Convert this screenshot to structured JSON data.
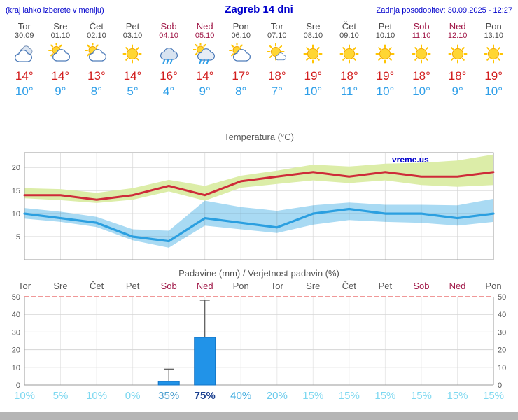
{
  "header": {
    "left_note": "(kraj lahko izberete v meniju)",
    "title": "Zagreb 14 dni",
    "updated": "Zadnja posodobitev: 30.09.2025 - 12:27"
  },
  "colors": {
    "accent_blue": "#0000CC",
    "weekend_red": "#A01747",
    "high_temp_red": "#D21E1E",
    "low_temp_blue": "#2F9FE8",
    "max_line_red": "#CE2B39",
    "min_line_blue": "#2B9FE0",
    "bar_blue": "#2193E8",
    "footer_gray": "#B5B5B5"
  },
  "forecast": {
    "days": [
      {
        "weekday": "Tor",
        "date": "30.09",
        "weekend": false,
        "icon": "cloudy",
        "high": "14°",
        "low": "10°"
      },
      {
        "weekday": "Sre",
        "date": "01.10",
        "weekend": false,
        "icon": "partly",
        "high": "14°",
        "low": "9°"
      },
      {
        "weekday": "Čet",
        "date": "02.10",
        "weekend": false,
        "icon": "partly",
        "high": "13°",
        "low": "8°"
      },
      {
        "weekday": "Pet",
        "date": "03.10",
        "weekend": false,
        "icon": "sunny",
        "high": "14°",
        "low": "5°"
      },
      {
        "weekday": "Sob",
        "date": "04.10",
        "weekend": true,
        "icon": "rain",
        "high": "16°",
        "low": "4°"
      },
      {
        "weekday": "Ned",
        "date": "05.10",
        "weekend": true,
        "icon": "rainsun",
        "high": "14°",
        "low": "9°"
      },
      {
        "weekday": "Pon",
        "date": "06.10",
        "weekend": false,
        "icon": "partly",
        "high": "17°",
        "low": "8°"
      },
      {
        "weekday": "Tor",
        "date": "07.10",
        "weekend": false,
        "icon": "mostlysunny",
        "high": "18°",
        "low": "7°"
      },
      {
        "weekday": "Sre",
        "date": "08.10",
        "weekend": false,
        "icon": "sunny",
        "high": "19°",
        "low": "10°"
      },
      {
        "weekday": "Čet",
        "date": "09.10",
        "weekend": false,
        "icon": "sunny",
        "high": "18°",
        "low": "11°"
      },
      {
        "weekday": "Pet",
        "date": "10.10",
        "weekend": false,
        "icon": "sunny",
        "high": "19°",
        "low": "10°"
      },
      {
        "weekday": "Sob",
        "date": "11.10",
        "weekend": true,
        "icon": "sunny",
        "high": "18°",
        "low": "10°"
      },
      {
        "weekday": "Ned",
        "date": "12.10",
        "weekend": true,
        "icon": "sunny",
        "high": "18°",
        "low": "9°"
      },
      {
        "weekday": "Pon",
        "date": "13.10",
        "weekend": false,
        "icon": "sunny",
        "high": "19°",
        "low": "10°"
      }
    ]
  },
  "chart_data": [
    {
      "type": "line",
      "title": "Temperatura (°C)",
      "watermark": "vreme.us",
      "x_labels": [
        "Tor",
        "Sre",
        "Čet",
        "Pet",
        "Sob",
        "Ned",
        "Pon",
        "Tor",
        "Sre",
        "Čet",
        "Pet",
        "Sob",
        "Ned",
        "Pon"
      ],
      "ylim": [
        0,
        23.2
      ],
      "yticks": [
        5,
        10,
        15,
        20
      ],
      "series": [
        {
          "name": "max-temp",
          "color": "#CE2B39",
          "width": 3,
          "values": [
            14,
            14,
            13,
            14,
            16,
            14,
            17,
            18,
            19,
            18,
            19,
            18,
            18,
            19
          ]
        },
        {
          "name": "min-temp",
          "color": "#2B9FE0",
          "width": 3.2,
          "values": [
            10,
            9,
            8,
            5,
            4,
            9,
            8,
            7,
            10,
            11,
            10,
            10,
            9,
            10
          ]
        }
      ],
      "bands": [
        {
          "name": "max-range",
          "color": "#DCEDA8",
          "upper": [
            15.5,
            15.3,
            14.5,
            15.5,
            17.3,
            16.0,
            18.2,
            19.3,
            20.6,
            20.2,
            20.8,
            21.0,
            21.5,
            22.8
          ],
          "lower": [
            13.3,
            12.9,
            12.3,
            13.0,
            14.8,
            12.8,
            15.6,
            16.4,
            17.2,
            16.6,
            17.2,
            16.2,
            15.8,
            16.2
          ]
        },
        {
          "name": "min-range",
          "color": "#A9DAF3",
          "upper": [
            11.2,
            10.4,
            9.3,
            6.6,
            6.3,
            12.8,
            11.4,
            10.6,
            11.8,
            12.4,
            11.9,
            11.9,
            11.8,
            13.2
          ],
          "lower": [
            8.9,
            8.2,
            7.1,
            4.2,
            2.6,
            7.4,
            6.6,
            5.8,
            7.6,
            8.6,
            8.2,
            8.0,
            7.4,
            8.2
          ]
        }
      ]
    },
    {
      "type": "bar",
      "title": "Padavine (mm) / Verjetnost padavin (%)",
      "x_labels": [
        "Tor",
        "Sre",
        "Čet",
        "Pet",
        "Sob",
        "Ned",
        "Pon",
        "Tor",
        "Sre",
        "Čet",
        "Pet",
        "Sob",
        "Ned",
        "Pon"
      ],
      "weekend": [
        false,
        false,
        false,
        false,
        true,
        true,
        false,
        false,
        false,
        false,
        false,
        true,
        true,
        false
      ],
      "ylim": [
        0,
        50
      ],
      "yticks": [
        0,
        10,
        20,
        30,
        40,
        50
      ],
      "bar_color": "#2193E8",
      "values": [
        0,
        0,
        0,
        0,
        2,
        27,
        0,
        0,
        0,
        0,
        0,
        0,
        0,
        0
      ],
      "whisker_max": [
        null,
        null,
        null,
        null,
        9,
        48,
        null,
        null,
        null,
        null,
        null,
        null,
        null,
        null
      ],
      "probability": {
        "values": [
          "10%",
          "5%",
          "10%",
          "0%",
          "35%",
          "75%",
          "40%",
          "20%",
          "15%",
          "15%",
          "15%",
          "15%",
          "15%",
          "15%"
        ],
        "colors": [
          "#7ED8F0",
          "#7ED8F0",
          "#7ED8F0",
          "#7ED8F0",
          "#4FA0D0",
          "#1A3F8F",
          "#45AEE0",
          "#6CCBEC",
          "#7ED8F0",
          "#7ED8F0",
          "#7ED8F0",
          "#7ED8F0",
          "#7ED8F0",
          "#7ED8F0"
        ],
        "bold": [
          false,
          false,
          false,
          false,
          false,
          true,
          false,
          false,
          false,
          false,
          false,
          false,
          false,
          false
        ]
      }
    }
  ]
}
